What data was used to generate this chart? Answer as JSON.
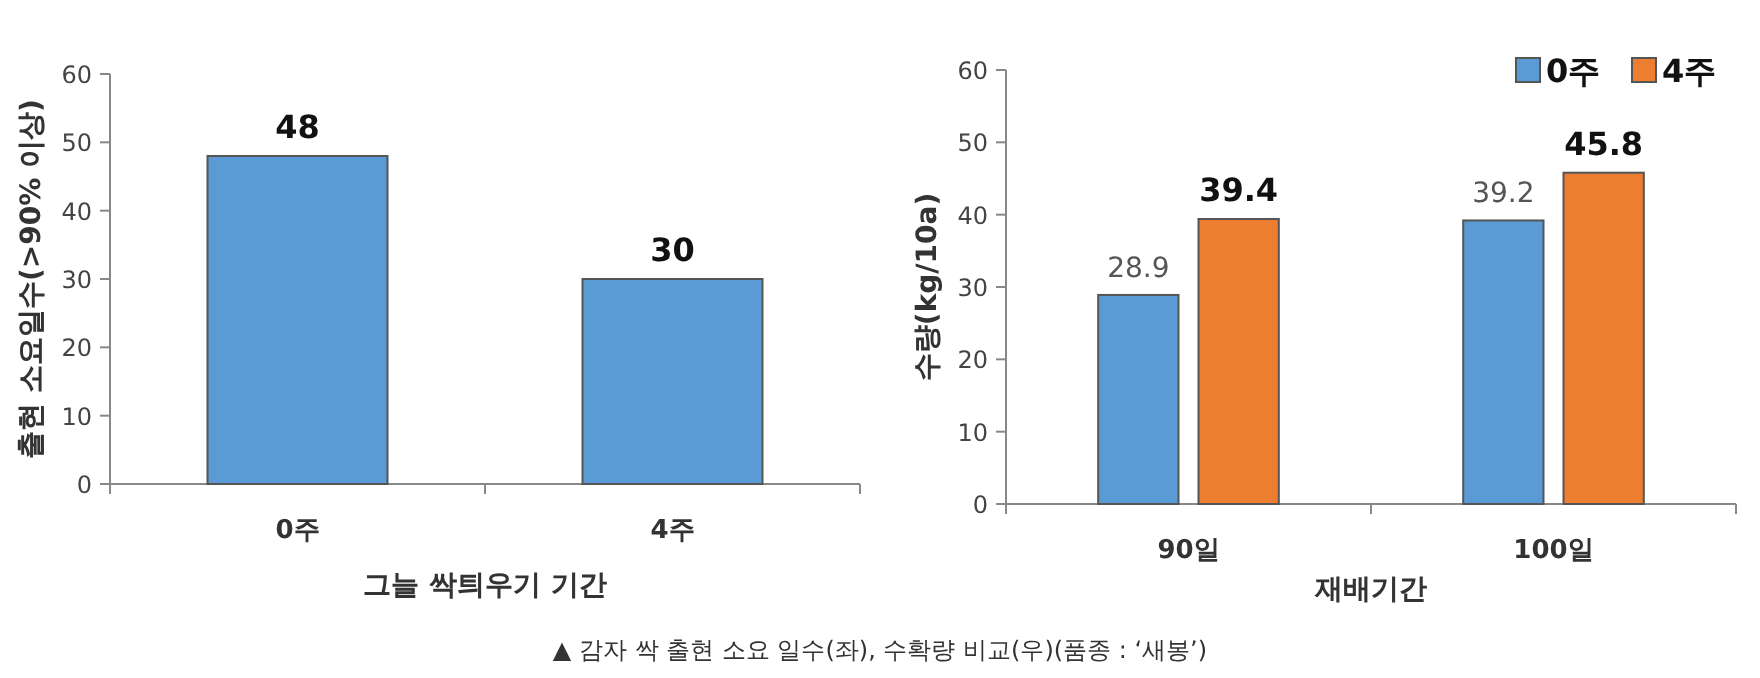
{
  "chart_data": [
    {
      "type": "bar",
      "categories": [
        "0주",
        "4주"
      ],
      "values": [
        48,
        30
      ],
      "color": "#5b9bd5",
      "ylim": [
        0,
        60
      ],
      "yticks": [
        0,
        10,
        20,
        30,
        40,
        50,
        60
      ],
      "xlabel": "그늘 싹틔우기 기간",
      "ylabel": "출현 소요일수(>90% 이상)",
      "data_labels": true,
      "annotations": [
        "▲ 감자 싹 출현 소요 일수(좌), 수확량 비교(우)(품종 : ‘새봉’)"
      ]
    },
    {
      "type": "bar",
      "categories": [
        "90일",
        "100일"
      ],
      "series": [
        {
          "name": "0주",
          "color": "#5b9bd5",
          "values": [
            28.9,
            39.2
          ]
        },
        {
          "name": "4주",
          "color": "#ed7d31",
          "values": [
            39.4,
            45.8
          ]
        }
      ],
      "ylim": [
        0,
        60
      ],
      "yticks": [
        0,
        10,
        20,
        30,
        40,
        50,
        60
      ],
      "xlabel": "재배기간",
      "ylabel": "수량(kg/10a)",
      "data_labels": true,
      "legend": "top right"
    }
  ]
}
